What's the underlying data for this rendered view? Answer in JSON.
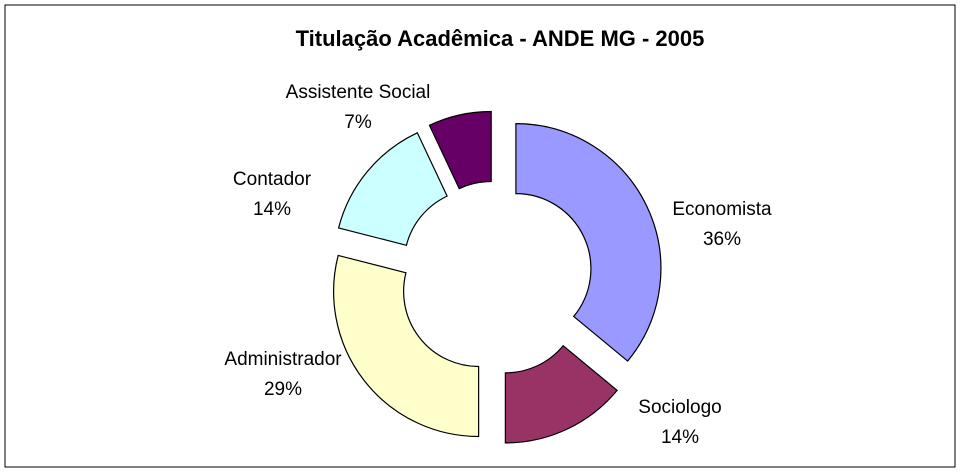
{
  "chart_data": {
    "type": "donut",
    "title": "Titulação Acadêmica - ANDE MG - 2005",
    "categories": [
      "Economista",
      "Sociologo",
      "Administrador",
      "Contador",
      "Assistente Social"
    ],
    "values": [
      36,
      14,
      29,
      14,
      7
    ],
    "value_labels": [
      "36%",
      "14%",
      "29%",
      "14%",
      "7%"
    ],
    "colors": [
      "#9999ff",
      "#993366",
      "#ffffcc",
      "#ccffff",
      "#660066"
    ]
  }
}
